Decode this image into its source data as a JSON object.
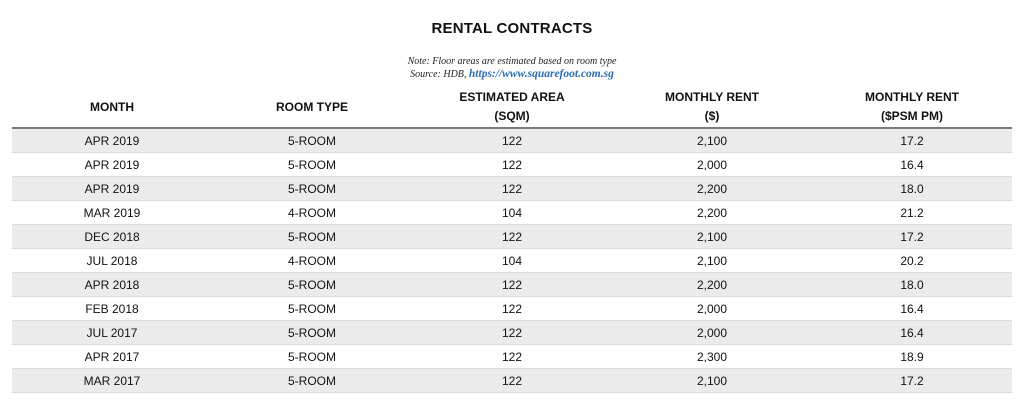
{
  "title": "RENTAL CONTRACTS",
  "note": "Note: Floor areas are estimated based on room type",
  "source_prefix": "Source: HDB,",
  "source_link": "https://www.squarefoot.com.sg",
  "columns": [
    {
      "line1": "MONTH",
      "line2": ""
    },
    {
      "line1": "ROOM TYPE",
      "line2": ""
    },
    {
      "line1": "ESTIMATED AREA",
      "line2": "(SQM)"
    },
    {
      "line1": "MONTHLY RENT",
      "line2": "($)"
    },
    {
      "line1": "MONTHLY RENT",
      "line2": "($PSM PM)"
    }
  ],
  "rows": [
    [
      "APR 2019",
      "5-ROOM",
      "122",
      "2,100",
      "17.2"
    ],
    [
      "APR 2019",
      "5-ROOM",
      "122",
      "2,000",
      "16.4"
    ],
    [
      "APR 2019",
      "5-ROOM",
      "122",
      "2,200",
      "18.0"
    ],
    [
      "MAR 2019",
      "4-ROOM",
      "104",
      "2,200",
      "21.2"
    ],
    [
      "DEC 2018",
      "5-ROOM",
      "122",
      "2,100",
      "17.2"
    ],
    [
      "JUL 2018",
      "4-ROOM",
      "104",
      "2,100",
      "20.2"
    ],
    [
      "APR 2018",
      "5-ROOM",
      "122",
      "2,200",
      "18.0"
    ],
    [
      "FEB 2018",
      "5-ROOM",
      "122",
      "2,000",
      "16.4"
    ],
    [
      "JUL 2017",
      "5-ROOM",
      "122",
      "2,000",
      "16.4"
    ],
    [
      "APR 2017",
      "5-ROOM",
      "122",
      "2,300",
      "18.9"
    ],
    [
      "MAR 2017",
      "5-ROOM",
      "122",
      "2,100",
      "17.2"
    ]
  ]
}
